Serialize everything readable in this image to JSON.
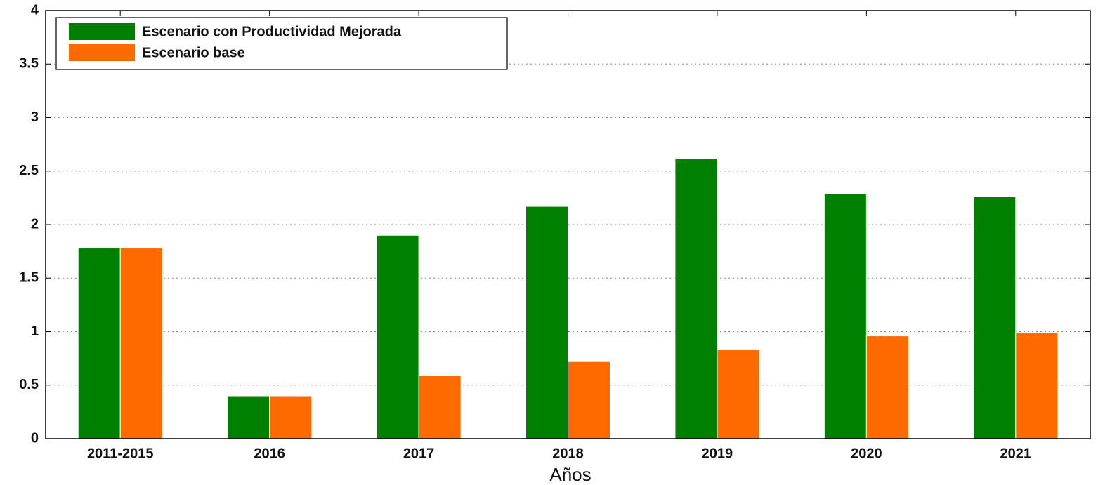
{
  "chart_data": {
    "type": "bar",
    "x_label": "Años",
    "categories": [
      "2011-2015",
      "2016",
      "2017",
      "2018",
      "2019",
      "2020",
      "2021"
    ],
    "series": [
      {
        "name": "Escenario con Productividad Mejorada",
        "color": "#008000",
        "values": [
          1.78,
          0.4,
          1.9,
          2.17,
          2.62,
          2.29,
          2.26
        ]
      },
      {
        "name": "Escenario base",
        "color": "#ff6a00",
        "values": [
          1.78,
          0.4,
          0.59,
          0.72,
          0.83,
          0.96,
          0.99
        ]
      }
    ],
    "ylim": [
      0,
      4
    ],
    "yticks": [
      0,
      0.5,
      1,
      1.5,
      2,
      2.5,
      3,
      3.5,
      4
    ],
    "grid": true,
    "legend": "upper left"
  }
}
